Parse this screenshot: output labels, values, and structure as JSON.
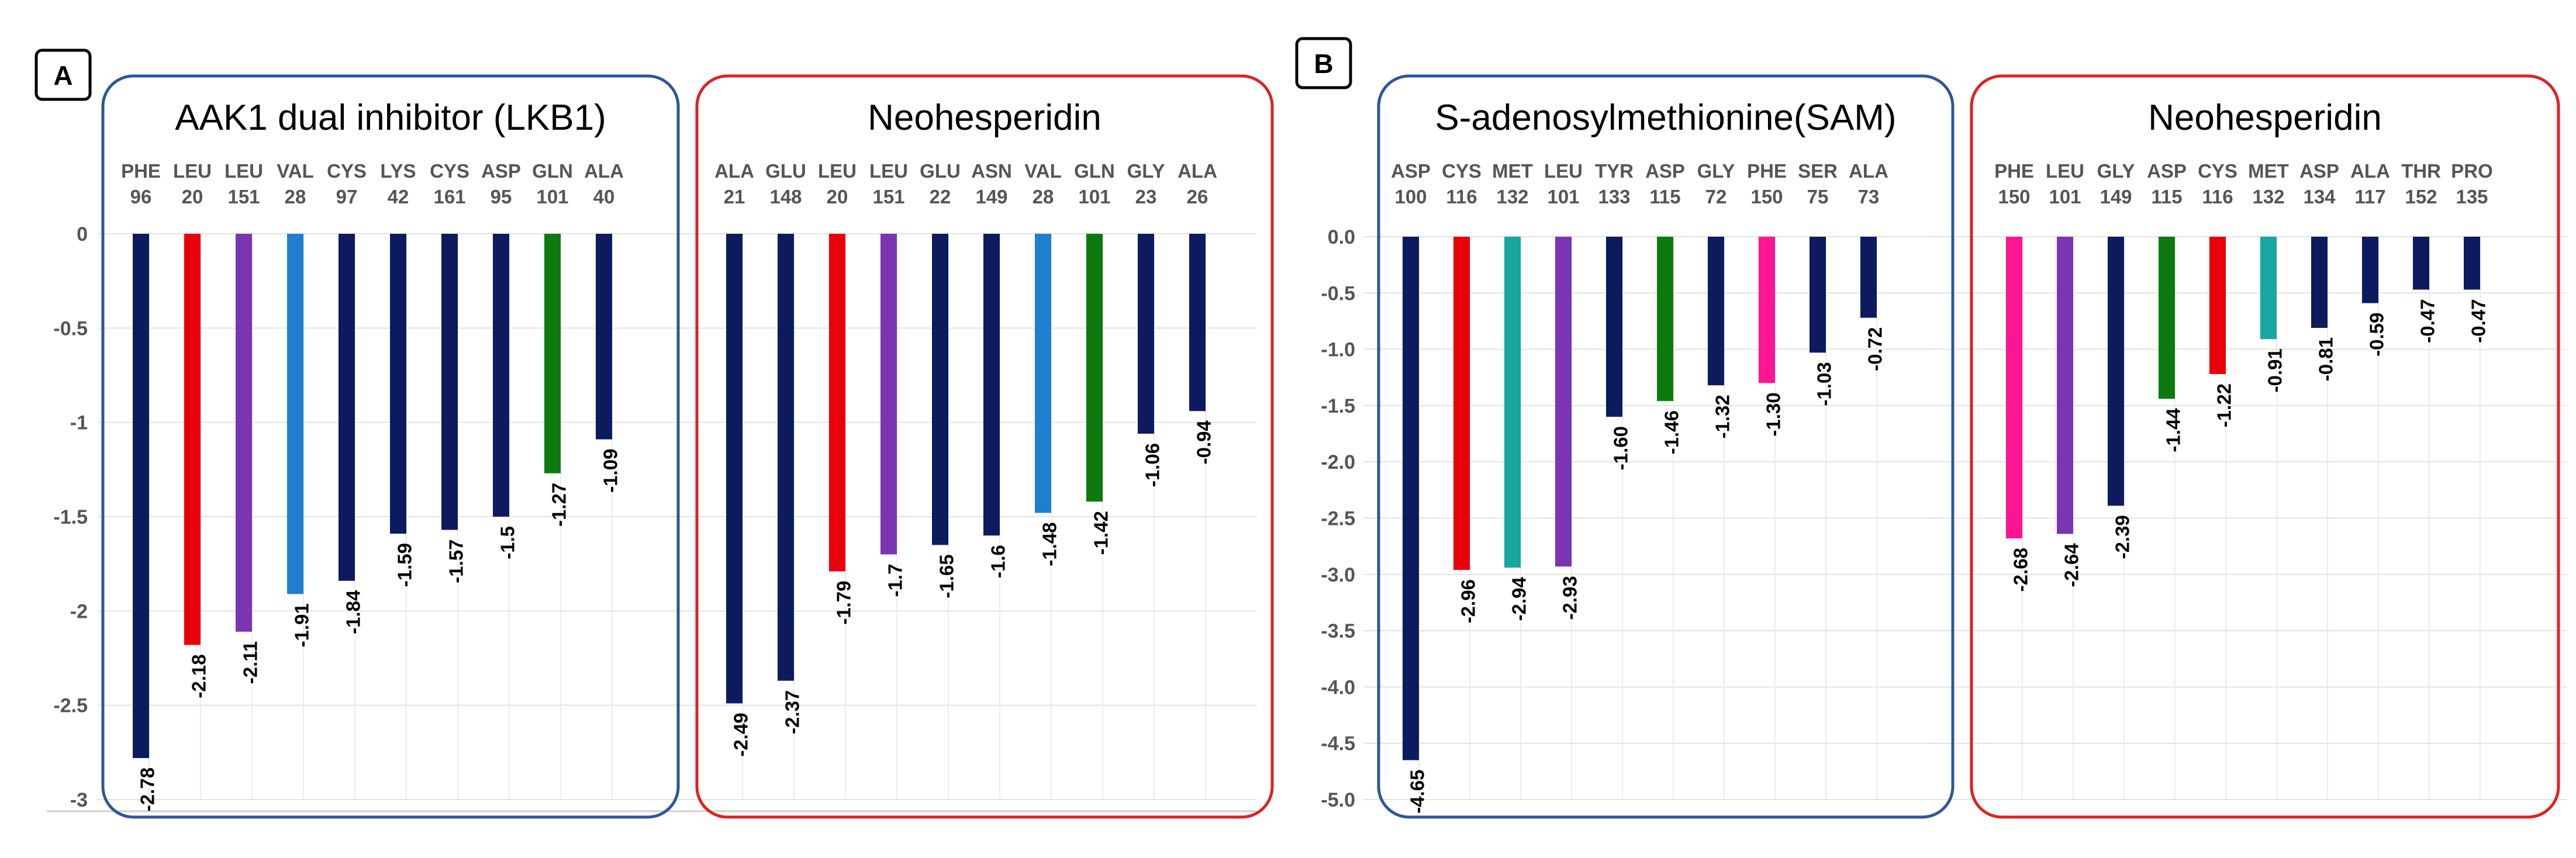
{
  "colors": {
    "navy": "#0d1b5e",
    "red": "#e8000b",
    "purple": "#7b35b0",
    "blue": "#1e7fd0",
    "green": "#0d7a10",
    "teal": "#18a6a0",
    "magenta": "#ff1493",
    "frame_blue": "#2f5597",
    "frame_red": "#e02020",
    "grid": "#e3e3e3",
    "axis_text": "#555555"
  },
  "chart_data": [
    {
      "type": "bar",
      "panel_label": "A",
      "ylim": [
        -3,
        0
      ],
      "yticks": [
        "0",
        "-0.5",
        "-1",
        "-1.5",
        "-2",
        "-2.5",
        "-3"
      ],
      "groups": [
        {
          "title": "AAK1 dual inhibitor (LKB1)",
          "frame": "blue",
          "residues": [
            {
              "name": "PHE",
              "num": "96",
              "value": -2.78,
              "label": "-2.78",
              "color": "navy"
            },
            {
              "name": "LEU",
              "num": "20",
              "value": -2.18,
              "label": "-2.18",
              "color": "red"
            },
            {
              "name": "LEU",
              "num": "151",
              "value": -2.11,
              "label": "-2.11",
              "color": "purple"
            },
            {
              "name": "VAL",
              "num": "28",
              "value": -1.91,
              "label": "-1.91",
              "color": "blue"
            },
            {
              "name": "CYS",
              "num": "97",
              "value": -1.84,
              "label": "-1.84",
              "color": "navy"
            },
            {
              "name": "LYS",
              "num": "42",
              "value": -1.59,
              "label": "-1.59",
              "color": "navy"
            },
            {
              "name": "CYS",
              "num": "161",
              "value": -1.57,
              "label": "-1.57",
              "color": "navy"
            },
            {
              "name": "ASP",
              "num": "95",
              "value": -1.5,
              "label": "-1.5",
              "color": "navy"
            },
            {
              "name": "GLN",
              "num": "101",
              "value": -1.27,
              "label": "-1.27",
              "color": "green"
            },
            {
              "name": "ALA",
              "num": "40",
              "value": -1.09,
              "label": "-1.09",
              "color": "navy"
            }
          ]
        },
        {
          "title": "Neohesperidin",
          "frame": "red",
          "residues": [
            {
              "name": "ALA",
              "num": "21",
              "value": -2.49,
              "label": "-2.49",
              "color": "navy"
            },
            {
              "name": "GLU",
              "num": "148",
              "value": -2.37,
              "label": "-2.37",
              "color": "navy"
            },
            {
              "name": "LEU",
              "num": "20",
              "value": -1.79,
              "label": "-1.79",
              "color": "red"
            },
            {
              "name": "LEU",
              "num": "151",
              "value": -1.7,
              "label": "-1.7",
              "color": "purple"
            },
            {
              "name": "GLU",
              "num": "22",
              "value": -1.65,
              "label": "-1.65",
              "color": "navy"
            },
            {
              "name": "ASN",
              "num": "149",
              "value": -1.6,
              "label": "-1.6",
              "color": "navy"
            },
            {
              "name": "VAL",
              "num": "28",
              "value": -1.48,
              "label": "-1.48",
              "color": "blue"
            },
            {
              "name": "GLN",
              "num": "101",
              "value": -1.42,
              "label": "-1.42",
              "color": "green"
            },
            {
              "name": "GLY",
              "num": "23",
              "value": -1.06,
              "label": "-1.06",
              "color": "navy"
            },
            {
              "name": "ALA",
              "num": "26",
              "value": -0.94,
              "label": "-0.94",
              "color": "navy"
            }
          ]
        }
      ]
    },
    {
      "type": "bar",
      "panel_label": "B",
      "ylim": [
        -5,
        0
      ],
      "yticks": [
        "0.0",
        "-0.5",
        "-1.0",
        "-1.5",
        "-2.0",
        "-2.5",
        "-3.0",
        "-3.5",
        "-4.0",
        "-4.5",
        "-5.0"
      ],
      "groups": [
        {
          "title": "S-adenosylmethionine(SAM)",
          "frame": "blue",
          "residues": [
            {
              "name": "ASP",
              "num": "100",
              "value": -4.65,
              "label": "-4.65",
              "color": "navy"
            },
            {
              "name": "CYS",
              "num": "116",
              "value": -2.96,
              "label": "-2.96",
              "color": "red"
            },
            {
              "name": "MET",
              "num": "132",
              "value": -2.94,
              "label": "-2.94",
              "color": "teal"
            },
            {
              "name": "LEU",
              "num": "101",
              "value": -2.93,
              "label": "-2.93",
              "color": "purple"
            },
            {
              "name": "TYR",
              "num": "133",
              "value": -1.6,
              "label": "-1.60",
              "color": "navy"
            },
            {
              "name": "ASP",
              "num": "115",
              "value": -1.46,
              "label": "-1.46",
              "color": "green"
            },
            {
              "name": "GLY",
              "num": "72",
              "value": -1.32,
              "label": "-1.32",
              "color": "navy"
            },
            {
              "name": "PHE",
              "num": "150",
              "value": -1.3,
              "label": "-1.30",
              "color": "magenta"
            },
            {
              "name": "SER",
              "num": "75",
              "value": -1.03,
              "label": "-1.03",
              "color": "navy"
            },
            {
              "name": "ALA",
              "num": "73",
              "value": -0.72,
              "label": "-0.72",
              "color": "navy"
            }
          ]
        },
        {
          "title": "Neohesperidin",
          "frame": "red",
          "residues": [
            {
              "name": "PHE",
              "num": "150",
              "value": -2.68,
              "label": "-2.68",
              "color": "magenta"
            },
            {
              "name": "LEU",
              "num": "101",
              "value": -2.64,
              "label": "-2.64",
              "color": "purple"
            },
            {
              "name": "GLY",
              "num": "149",
              "value": -2.39,
              "label": "-2.39",
              "color": "navy"
            },
            {
              "name": "ASP",
              "num": "115",
              "value": -1.44,
              "label": "-1.44",
              "color": "green"
            },
            {
              "name": "CYS",
              "num": "116",
              "value": -1.22,
              "label": "-1.22",
              "color": "red"
            },
            {
              "name": "MET",
              "num": "132",
              "value": -0.91,
              "label": "-0.91",
              "color": "teal"
            },
            {
              "name": "ASP",
              "num": "134",
              "value": -0.81,
              "label": "-0.81",
              "color": "navy"
            },
            {
              "name": "ALA",
              "num": "117",
              "value": -0.59,
              "label": "-0.59",
              "color": "navy"
            },
            {
              "name": "THR",
              "num": "152",
              "value": -0.47,
              "label": "-0.47",
              "color": "navy"
            },
            {
              "name": "PRO",
              "num": "135",
              "value": -0.47,
              "label": "-0.47",
              "color": "navy"
            }
          ]
        }
      ]
    }
  ]
}
